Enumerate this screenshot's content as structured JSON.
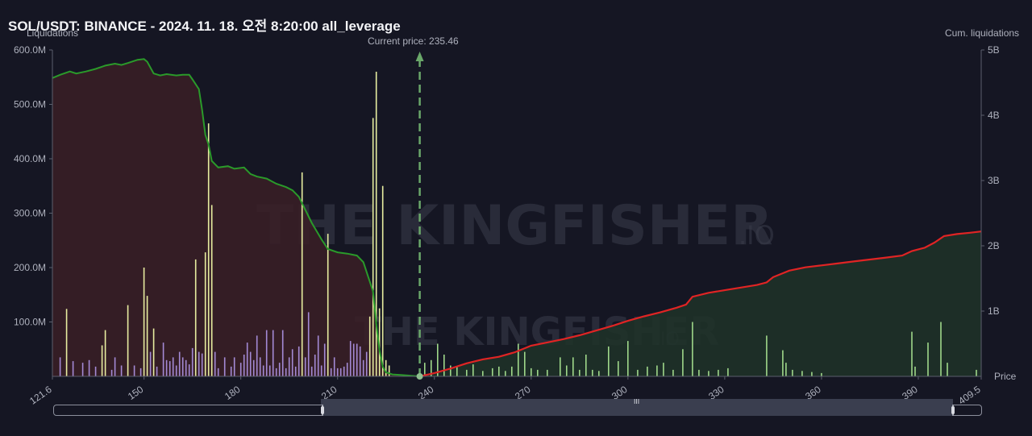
{
  "title": "SOL/USDT: BINANCE - 2024. 11. 18. 오전 8:20:00 all_leverage",
  "watermark": {
    "main": "THE KINGFISHER",
    "suffix": ".IO"
  },
  "colors": {
    "bg": "#151623",
    "short_cum_line": "#e02424",
    "long_cum_line": "#2a9a2a",
    "short_area": "#1e3228",
    "long_area": "#3a1e26",
    "bar_yellow": "#e8eea0",
    "bar_purple": "#a48ad6",
    "bar_green": "#9fd88a",
    "current_price_line": "#6aa86a"
  },
  "chart_data": {
    "type": "bar",
    "title": "SOL/USDT: BINANCE - 2024. 11. 18. 오전 8:20:00 all_leverage",
    "xlabel": "Price",
    "ylabel_left": "Liquidations",
    "ylabel_right": "Cum. liquidations",
    "current_price_label": "Current price: 235.46",
    "current_price": 235.46,
    "xlim": [
      121.6,
      409.5
    ],
    "x_ticks": [
      "121.6",
      "150",
      "180",
      "210",
      "240",
      "270",
      "300",
      "330",
      "360",
      "390",
      "409.5"
    ],
    "ylim_left": [
      0,
      600
    ],
    "y_left_ticks": [
      "600.0M",
      "500.0M",
      "400.0M",
      "300.0M",
      "200.0M",
      "100.0M"
    ],
    "ylim_right": [
      0,
      5
    ],
    "y_right_ticks": [
      "5B",
      "4B",
      "3B",
      "2B",
      "1B"
    ],
    "bars_long_liquidations_M": [
      {
        "x": 124,
        "v": 35,
        "c": "p"
      },
      {
        "x": 126,
        "v": 124,
        "c": "y"
      },
      {
        "x": 128,
        "v": 28,
        "c": "p"
      },
      {
        "x": 131,
        "v": 25,
        "c": "p"
      },
      {
        "x": 133,
        "v": 30,
        "c": "p"
      },
      {
        "x": 135,
        "v": 18,
        "c": "p"
      },
      {
        "x": 137,
        "v": 57,
        "c": "y"
      },
      {
        "x": 138,
        "v": 85,
        "c": "y"
      },
      {
        "x": 140,
        "v": 12,
        "c": "p"
      },
      {
        "x": 141,
        "v": 35,
        "c": "p"
      },
      {
        "x": 143,
        "v": 20,
        "c": "p"
      },
      {
        "x": 145,
        "v": 131,
        "c": "y"
      },
      {
        "x": 147,
        "v": 20,
        "c": "p"
      },
      {
        "x": 149,
        "v": 15,
        "c": "p"
      },
      {
        "x": 150,
        "v": 200,
        "c": "y"
      },
      {
        "x": 151,
        "v": 148,
        "c": "y"
      },
      {
        "x": 152,
        "v": 45,
        "c": "p"
      },
      {
        "x": 153,
        "v": 88,
        "c": "y"
      },
      {
        "x": 154,
        "v": 18,
        "c": "p"
      },
      {
        "x": 156,
        "v": 62,
        "c": "p"
      },
      {
        "x": 157,
        "v": 30,
        "c": "p"
      },
      {
        "x": 158,
        "v": 28,
        "c": "p"
      },
      {
        "x": 159,
        "v": 35,
        "c": "p"
      },
      {
        "x": 160,
        "v": 20,
        "c": "p"
      },
      {
        "x": 161,
        "v": 45,
        "c": "p"
      },
      {
        "x": 162,
        "v": 35,
        "c": "p"
      },
      {
        "x": 163,
        "v": 30,
        "c": "p"
      },
      {
        "x": 164,
        "v": 22,
        "c": "p"
      },
      {
        "x": 165,
        "v": 52,
        "c": "p"
      },
      {
        "x": 166,
        "v": 215,
        "c": "y"
      },
      {
        "x": 167,
        "v": 45,
        "c": "p"
      },
      {
        "x": 168,
        "v": 42,
        "c": "p"
      },
      {
        "x": 169,
        "v": 228,
        "c": "y"
      },
      {
        "x": 170,
        "v": 465,
        "c": "y"
      },
      {
        "x": 171,
        "v": 315,
        "c": "y"
      },
      {
        "x": 172,
        "v": 45,
        "c": "p"
      },
      {
        "x": 173,
        "v": 15,
        "c": "p"
      },
      {
        "x": 175,
        "v": 35,
        "c": "p"
      },
      {
        "x": 177,
        "v": 18,
        "c": "p"
      },
      {
        "x": 178,
        "v": 35,
        "c": "p"
      },
      {
        "x": 180,
        "v": 25,
        "c": "p"
      },
      {
        "x": 181,
        "v": 40,
        "c": "p"
      },
      {
        "x": 182,
        "v": 62,
        "c": "p"
      },
      {
        "x": 183,
        "v": 45,
        "c": "p"
      },
      {
        "x": 184,
        "v": 30,
        "c": "p"
      },
      {
        "x": 185,
        "v": 75,
        "c": "p"
      },
      {
        "x": 186,
        "v": 35,
        "c": "p"
      },
      {
        "x": 187,
        "v": 20,
        "c": "p"
      },
      {
        "x": 188,
        "v": 85,
        "c": "p"
      },
      {
        "x": 189,
        "v": 20,
        "c": "p"
      },
      {
        "x": 190,
        "v": 85,
        "c": "p"
      },
      {
        "x": 191,
        "v": 15,
        "c": "p"
      },
      {
        "x": 192,
        "v": 25,
        "c": "p"
      },
      {
        "x": 193,
        "v": 85,
        "c": "p"
      },
      {
        "x": 194,
        "v": 15,
        "c": "p"
      },
      {
        "x": 195,
        "v": 35,
        "c": "p"
      },
      {
        "x": 196,
        "v": 50,
        "c": "p"
      },
      {
        "x": 197,
        "v": 18,
        "c": "p"
      },
      {
        "x": 198,
        "v": 55,
        "c": "p"
      },
      {
        "x": 199,
        "v": 375,
        "c": "y"
      },
      {
        "x": 200,
        "v": 35,
        "c": "p"
      },
      {
        "x": 201,
        "v": 118,
        "c": "p"
      },
      {
        "x": 202,
        "v": 18,
        "c": "p"
      },
      {
        "x": 203,
        "v": 40,
        "c": "p"
      },
      {
        "x": 204,
        "v": 75,
        "c": "p"
      },
      {
        "x": 205,
        "v": 20,
        "c": "p"
      },
      {
        "x": 206,
        "v": 60,
        "c": "p"
      },
      {
        "x": 207,
        "v": 262,
        "c": "y"
      },
      {
        "x": 208,
        "v": 15,
        "c": "p"
      },
      {
        "x": 209,
        "v": 35,
        "c": "p"
      },
      {
        "x": 210,
        "v": 15,
        "c": "p"
      },
      {
        "x": 211,
        "v": 15,
        "c": "p"
      },
      {
        "x": 212,
        "v": 18,
        "c": "p"
      },
      {
        "x": 213,
        "v": 25,
        "c": "p"
      },
      {
        "x": 214,
        "v": 65,
        "c": "p"
      },
      {
        "x": 215,
        "v": 60,
        "c": "p"
      },
      {
        "x": 216,
        "v": 60,
        "c": "p"
      },
      {
        "x": 217,
        "v": 55,
        "c": "p"
      },
      {
        "x": 218,
        "v": 30,
        "c": "p"
      },
      {
        "x": 219,
        "v": 45,
        "c": "p"
      },
      {
        "x": 220,
        "v": 110,
        "c": "y"
      },
      {
        "x": 221,
        "v": 475,
        "c": "y"
      },
      {
        "x": 222,
        "v": 560,
        "c": "y"
      },
      {
        "x": 223,
        "v": 125,
        "c": "y"
      },
      {
        "x": 224,
        "v": 350,
        "c": "y"
      },
      {
        "x": 225,
        "v": 30,
        "c": "y"
      },
      {
        "x": 226,
        "v": 20,
        "c": "y"
      }
    ],
    "bars_short_liquidations_M": [
      {
        "x": 237,
        "v": 25
      },
      {
        "x": 239,
        "v": 30
      },
      {
        "x": 241,
        "v": 60
      },
      {
        "x": 243,
        "v": 40
      },
      {
        "x": 245,
        "v": 20
      },
      {
        "x": 247,
        "v": 18
      },
      {
        "x": 250,
        "v": 12
      },
      {
        "x": 252,
        "v": 22
      },
      {
        "x": 255,
        "v": 10
      },
      {
        "x": 258,
        "v": 15
      },
      {
        "x": 260,
        "v": 18
      },
      {
        "x": 262,
        "v": 10
      },
      {
        "x": 264,
        "v": 18
      },
      {
        "x": 266,
        "v": 60
      },
      {
        "x": 268,
        "v": 45
      },
      {
        "x": 270,
        "v": 15
      },
      {
        "x": 272,
        "v": 12
      },
      {
        "x": 275,
        "v": 12
      },
      {
        "x": 279,
        "v": 35
      },
      {
        "x": 281,
        "v": 20
      },
      {
        "x": 283,
        "v": 35
      },
      {
        "x": 285,
        "v": 12
      },
      {
        "x": 287,
        "v": 40
      },
      {
        "x": 289,
        "v": 12
      },
      {
        "x": 291,
        "v": 10
      },
      {
        "x": 294,
        "v": 55
      },
      {
        "x": 297,
        "v": 28
      },
      {
        "x": 300,
        "v": 65
      },
      {
        "x": 303,
        "v": 12
      },
      {
        "x": 306,
        "v": 18
      },
      {
        "x": 309,
        "v": 20
      },
      {
        "x": 311,
        "v": 25
      },
      {
        "x": 314,
        "v": 12
      },
      {
        "x": 317,
        "v": 50
      },
      {
        "x": 320,
        "v": 100
      },
      {
        "x": 322,
        "v": 12
      },
      {
        "x": 325,
        "v": 10
      },
      {
        "x": 328,
        "v": 12
      },
      {
        "x": 331,
        "v": 15
      },
      {
        "x": 343,
        "v": 75
      },
      {
        "x": 348,
        "v": 48
      },
      {
        "x": 349,
        "v": 25
      },
      {
        "x": 351,
        "v": 12
      },
      {
        "x": 354,
        "v": 10
      },
      {
        "x": 357,
        "v": 8
      },
      {
        "x": 360,
        "v": 6
      },
      {
        "x": 388,
        "v": 82
      },
      {
        "x": 389,
        "v": 18
      },
      {
        "x": 393,
        "v": 62
      },
      {
        "x": 397,
        "v": 100
      },
      {
        "x": 399,
        "v": 25
      },
      {
        "x": 408,
        "v": 12
      }
    ],
    "cum_long_B": [
      [
        121.6,
        4.57
      ],
      [
        124,
        4.62
      ],
      [
        127,
        4.67
      ],
      [
        129,
        4.64
      ],
      [
        132,
        4.67
      ],
      [
        135,
        4.71
      ],
      [
        138,
        4.76
      ],
      [
        141,
        4.79
      ],
      [
        143,
        4.77
      ],
      [
        145,
        4.8
      ],
      [
        148,
        4.85
      ],
      [
        150,
        4.86
      ],
      [
        151,
        4.82
      ],
      [
        153,
        4.64
      ],
      [
        155,
        4.61
      ],
      [
        157,
        4.63
      ],
      [
        160,
        4.61
      ],
      [
        162,
        4.62
      ],
      [
        164,
        4.62
      ],
      [
        165,
        4.55
      ],
      [
        167,
        4.4
      ],
      [
        168,
        4.08
      ],
      [
        169,
        3.7
      ],
      [
        170,
        3.55
      ],
      [
        171,
        3.3
      ],
      [
        173,
        3.2
      ],
      [
        176,
        3.22
      ],
      [
        178,
        3.18
      ],
      [
        181,
        3.2
      ],
      [
        183,
        3.1
      ],
      [
        185,
        3.06
      ],
      [
        188,
        3.03
      ],
      [
        191,
        2.95
      ],
      [
        194,
        2.9
      ],
      [
        196,
        2.85
      ],
      [
        198,
        2.75
      ],
      [
        200,
        2.55
      ],
      [
        202,
        2.35
      ],
      [
        205,
        2.1
      ],
      [
        207,
        1.95
      ],
      [
        210,
        1.9
      ],
      [
        213,
        1.88
      ],
      [
        216,
        1.85
      ],
      [
        218,
        1.75
      ],
      [
        220,
        1.45
      ],
      [
        221,
        1.3
      ],
      [
        222,
        0.8
      ],
      [
        223,
        0.4
      ],
      [
        224,
        0.15
      ],
      [
        225,
        0.06
      ],
      [
        227,
        0.03
      ],
      [
        230,
        0.02
      ],
      [
        235.46,
        0.0
      ]
    ],
    "cum_short_B": [
      [
        235.46,
        0.0
      ],
      [
        240,
        0.05
      ],
      [
        245,
        0.12
      ],
      [
        250,
        0.2
      ],
      [
        255,
        0.26
      ],
      [
        260,
        0.3
      ],
      [
        265,
        0.37
      ],
      [
        270,
        0.47
      ],
      [
        275,
        0.52
      ],
      [
        280,
        0.57
      ],
      [
        285,
        0.63
      ],
      [
        290,
        0.7
      ],
      [
        295,
        0.77
      ],
      [
        300,
        0.85
      ],
      [
        305,
        0.92
      ],
      [
        310,
        0.98
      ],
      [
        315,
        1.05
      ],
      [
        318,
        1.1
      ],
      [
        320,
        1.22
      ],
      [
        325,
        1.28
      ],
      [
        330,
        1.32
      ],
      [
        335,
        1.36
      ],
      [
        340,
        1.4
      ],
      [
        343,
        1.44
      ],
      [
        345,
        1.52
      ],
      [
        350,
        1.62
      ],
      [
        355,
        1.67
      ],
      [
        360,
        1.7
      ],
      [
        365,
        1.73
      ],
      [
        370,
        1.76
      ],
      [
        375,
        1.79
      ],
      [
        380,
        1.82
      ],
      [
        385,
        1.85
      ],
      [
        388,
        1.92
      ],
      [
        392,
        1.97
      ],
      [
        395,
        2.05
      ],
      [
        398,
        2.15
      ],
      [
        402,
        2.18
      ],
      [
        406,
        2.2
      ],
      [
        409.5,
        2.22
      ]
    ]
  },
  "scrollbar": {
    "grip_label": "III"
  }
}
